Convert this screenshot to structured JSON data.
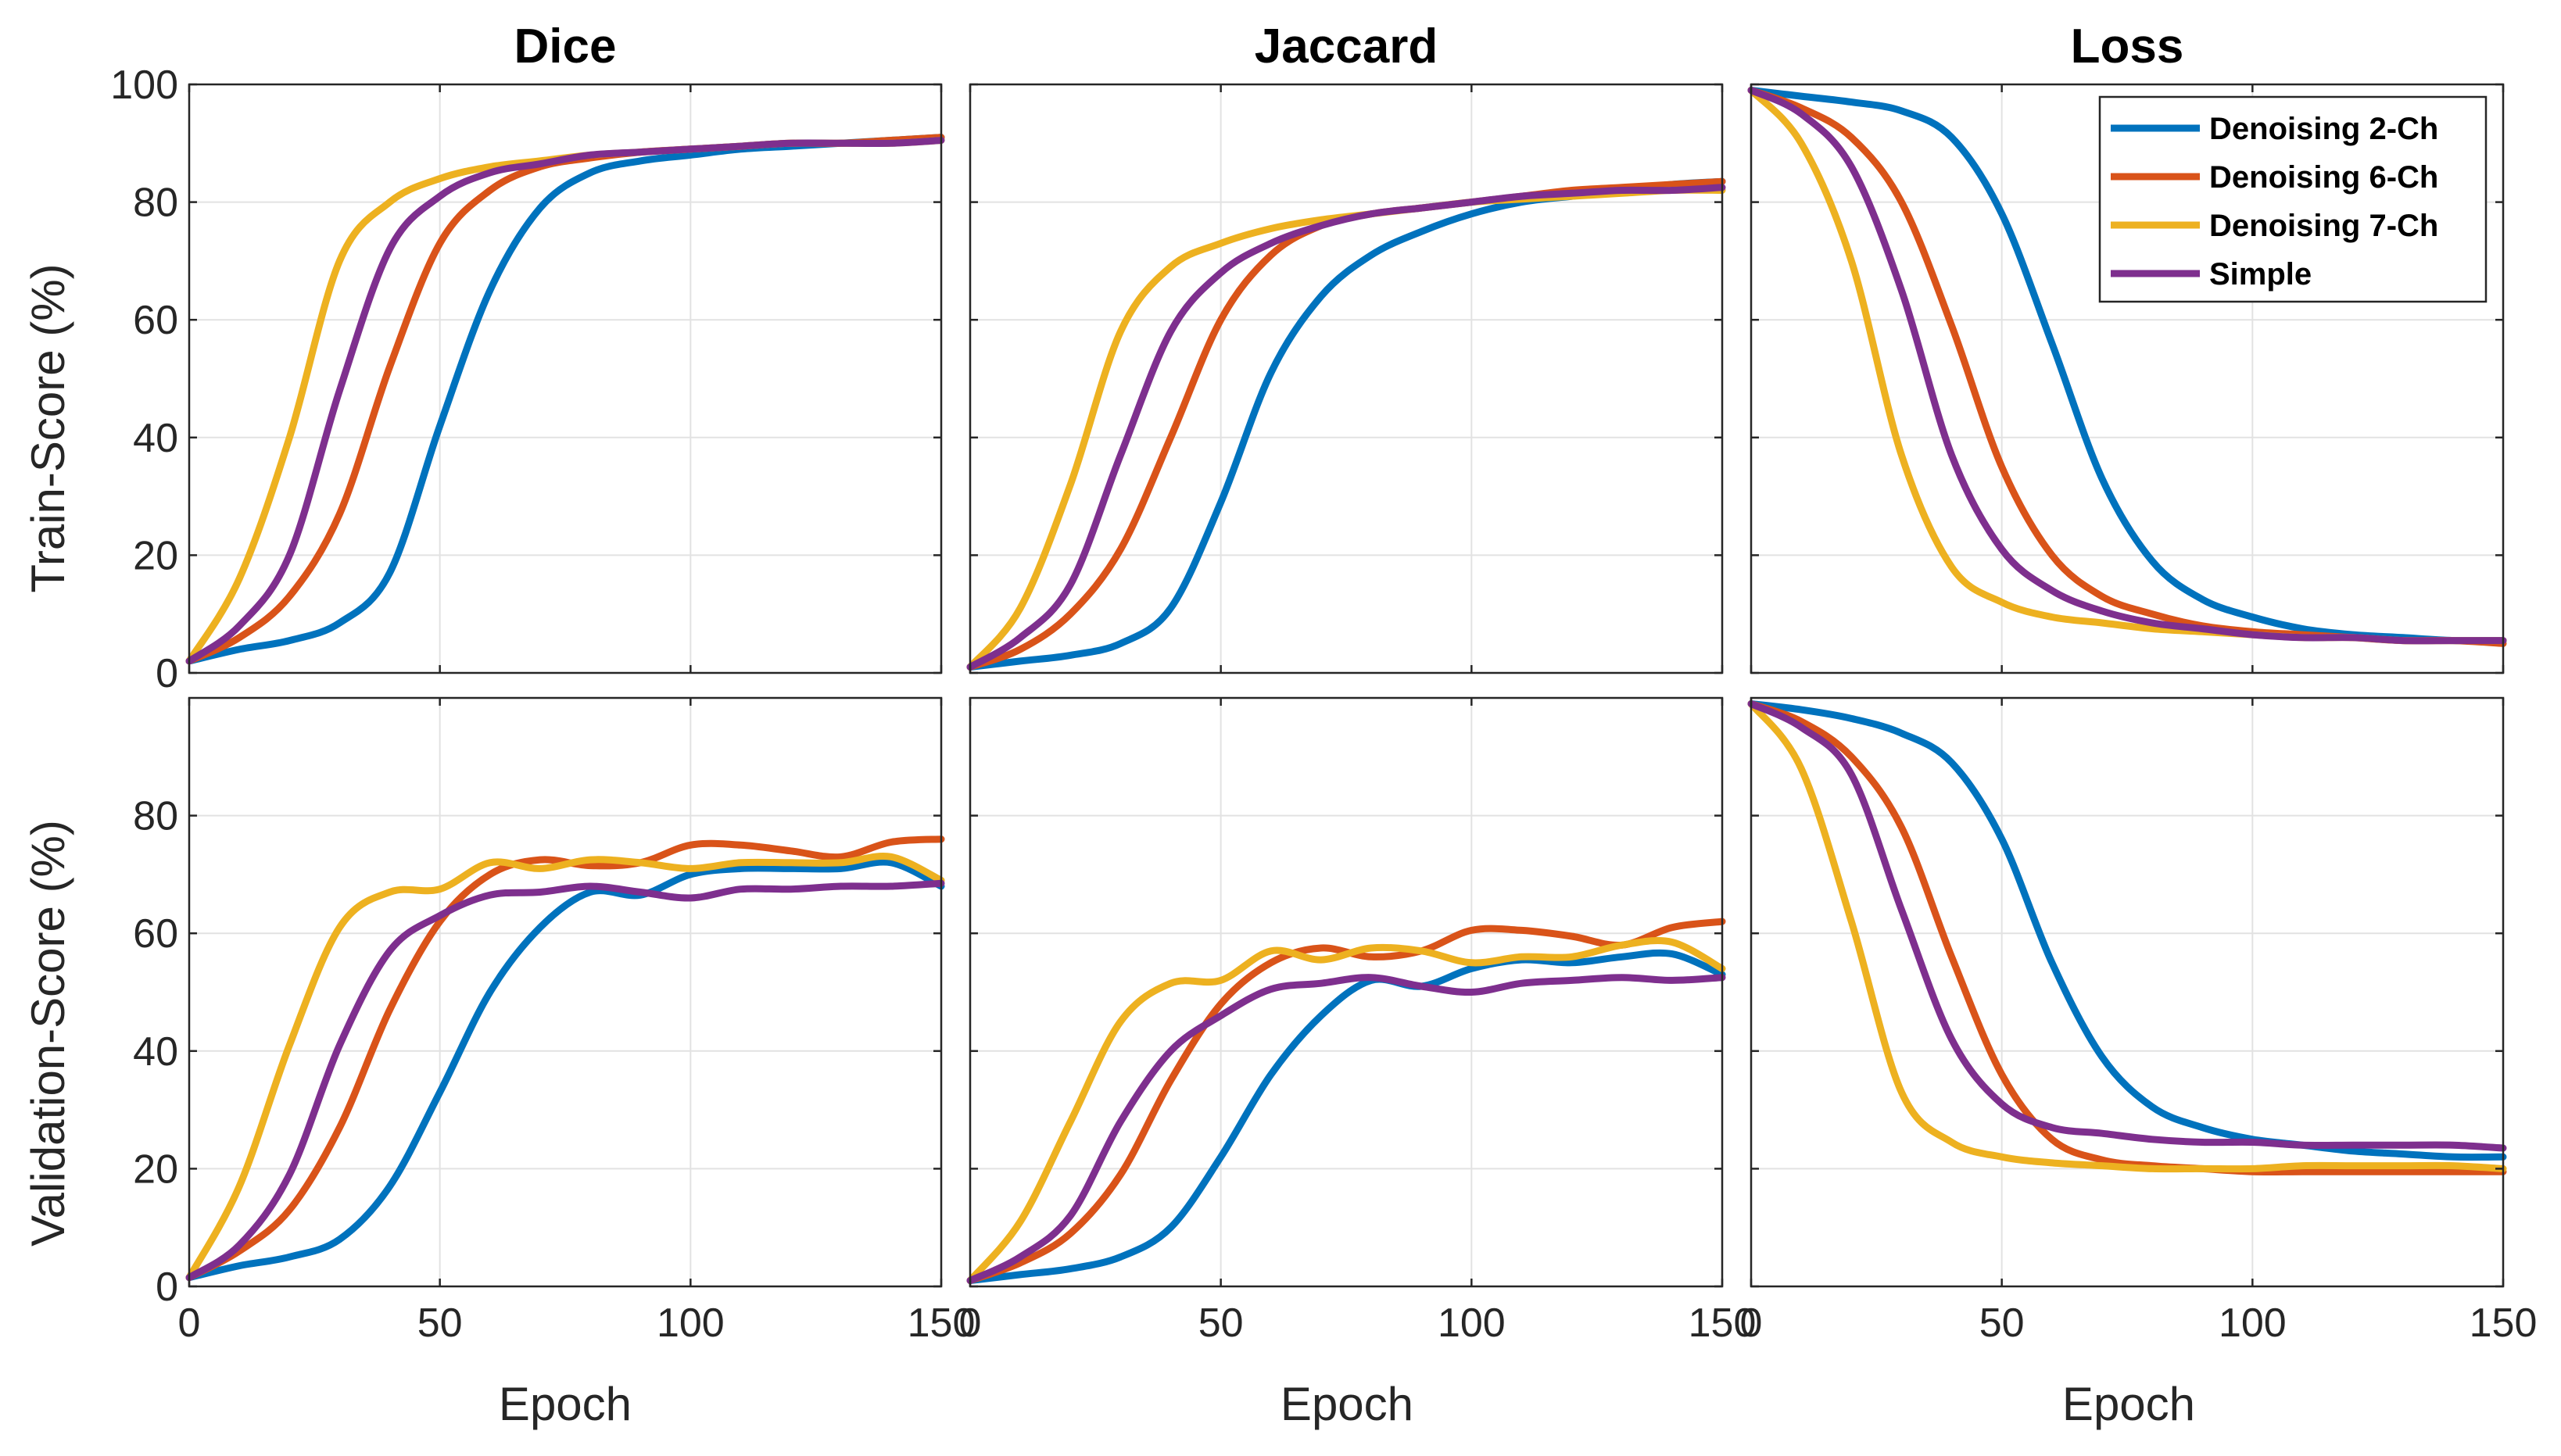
{
  "figure": {
    "xlabel": "Epoch",
    "row_ylabels": [
      "Train-Score (%)",
      "Validation-Score (%)"
    ],
    "column_titles": [
      "Dice",
      "Jaccard",
      "Loss"
    ]
  },
  "legend": {
    "entries": [
      {
        "name": "Denoising 2-Ch",
        "color": "#0072BD"
      },
      {
        "name": "Denoising 6-Ch",
        "color": "#D95319"
      },
      {
        "name": "Denoising 7-Ch",
        "color": "#EDB120"
      },
      {
        "name": "Simple",
        "color": "#7E2F8E"
      }
    ],
    "placement": "top-right of Loss (train) panel"
  },
  "chart_data": [
    {
      "type": "line",
      "panel": "train-dice",
      "title": "Dice",
      "xlabel": "",
      "ylabel": "Train-Score (%)",
      "xlim": [
        0,
        150
      ],
      "ylim": [
        0,
        100
      ],
      "xticks": [
        0,
        50,
        100,
        150
      ],
      "yticks": [
        0,
        20,
        40,
        60,
        80,
        100
      ],
      "xtick_labels": [],
      "ytick_labels": [
        "0",
        "20",
        "40",
        "60",
        "80",
        "100"
      ],
      "grid": true,
      "x": [
        0,
        10,
        20,
        30,
        40,
        50,
        60,
        70,
        80,
        90,
        100,
        110,
        120,
        130,
        140,
        150
      ],
      "series": [
        {
          "name": "Denoising 2-Ch",
          "values": [
            2,
            4,
            5.5,
            8.5,
            17,
            42,
            65,
            79,
            85,
            87,
            88,
            89,
            89.5,
            90,
            90.5,
            91
          ]
        },
        {
          "name": "Denoising 6-Ch",
          "values": [
            2,
            6,
            13,
            27,
            52,
            73,
            82,
            86,
            87.5,
            88.5,
            89,
            89.5,
            90,
            90,
            90.5,
            91
          ]
        },
        {
          "name": "Denoising 7-Ch",
          "values": [
            2,
            16,
            40,
            70,
            80,
            84,
            86,
            87,
            88,
            88.5,
            89,
            89.5,
            90,
            90,
            90,
            90.5
          ]
        },
        {
          "name": "Simple",
          "values": [
            2,
            8,
            20,
            48,
            72,
            81,
            85,
            86.5,
            88,
            88.5,
            89,
            89.5,
            90,
            90,
            90,
            90.5
          ]
        }
      ]
    },
    {
      "type": "line",
      "panel": "train-jaccard",
      "title": "Jaccard",
      "xlabel": "",
      "ylabel": "",
      "xlim": [
        0,
        150
      ],
      "ylim": [
        0,
        100
      ],
      "xticks": [
        0,
        50,
        100,
        150
      ],
      "yticks": [
        0,
        20,
        40,
        60,
        80,
        100
      ],
      "xtick_labels": [],
      "ytick_labels": [],
      "grid": true,
      "x": [
        0,
        10,
        20,
        30,
        40,
        50,
        60,
        70,
        80,
        90,
        100,
        110,
        120,
        130,
        140,
        150
      ],
      "series": [
        {
          "name": "Denoising 2-Ch",
          "values": [
            1,
            2,
            3,
            5,
            11,
            29,
            51,
            64,
            71,
            75,
            78,
            80,
            81,
            82,
            83,
            83.5
          ]
        },
        {
          "name": "Denoising 6-Ch",
          "values": [
            1,
            4,
            10,
            21,
            40,
            60,
            71,
            76,
            78,
            79,
            80,
            81,
            82,
            82.5,
            83,
            83.5
          ]
        },
        {
          "name": "Denoising 7-Ch",
          "values": [
            1,
            11,
            32,
            58,
            69,
            73,
            75.5,
            77,
            78,
            79,
            80,
            80.5,
            81,
            81.5,
            82,
            82
          ]
        },
        {
          "name": "Simple",
          "values": [
            1,
            6,
            15,
            37,
            58,
            68,
            73,
            76,
            78,
            79,
            80,
            81,
            81.5,
            82,
            82,
            82.5
          ]
        }
      ]
    },
    {
      "type": "line",
      "panel": "train-loss",
      "title": "Loss",
      "xlabel": "",
      "ylabel": "",
      "xlim": [
        0,
        150
      ],
      "ylim": [
        0,
        100
      ],
      "xticks": [
        0,
        50,
        100,
        150
      ],
      "yticks": [
        0,
        20,
        40,
        60,
        80,
        100
      ],
      "xtick_labels": [],
      "ytick_labels": [],
      "grid": true,
      "x": [
        0,
        10,
        20,
        30,
        40,
        50,
        60,
        70,
        80,
        90,
        100,
        110,
        120,
        130,
        140,
        150
      ],
      "series": [
        {
          "name": "Denoising 2-Ch",
          "values": [
            99,
            98,
            97,
            95.5,
            91,
            78,
            56,
            33,
            19,
            12.5,
            9.5,
            7.5,
            6.5,
            6,
            5.5,
            5.5
          ]
        },
        {
          "name": "Denoising 6-Ch",
          "values": [
            99,
            96,
            91,
            80,
            59,
            35,
            20,
            13,
            10,
            8,
            7,
            6.5,
            6,
            5.5,
            5.5,
            5
          ]
        },
        {
          "name": "Denoising 7-Ch",
          "values": [
            99,
            90,
            70,
            37,
            18,
            12,
            9.5,
            8.5,
            7.5,
            7,
            6.5,
            6,
            6,
            5.5,
            5.5,
            5.5
          ]
        },
        {
          "name": "Simple",
          "values": [
            99,
            95,
            86,
            65,
            37,
            21,
            14,
            10.5,
            8.5,
            7.5,
            6.5,
            6,
            6,
            5.5,
            5.5,
            5.5
          ]
        }
      ]
    },
    {
      "type": "line",
      "panel": "validation-dice",
      "title": "",
      "xlabel": "Epoch",
      "ylabel": "Validation-Score (%)",
      "xlim": [
        0,
        150
      ],
      "ylim": [
        0,
        100
      ],
      "xticks": [
        0,
        50,
        100,
        150
      ],
      "yticks": [
        0,
        20,
        40,
        60,
        80
      ],
      "xtick_labels": [
        "0",
        "50",
        "100",
        "150"
      ],
      "ytick_labels": [
        "0",
        "20",
        "40",
        "60",
        "80"
      ],
      "grid": true,
      "x": [
        0,
        10,
        20,
        30,
        40,
        50,
        60,
        70,
        80,
        90,
        100,
        110,
        120,
        130,
        140,
        150
      ],
      "series": [
        {
          "name": "Denoising 2-Ch",
          "values": [
            1.5,
            3.5,
            5,
            8,
            17,
            33,
            50,
            61,
            67,
            66.5,
            70,
            71,
            71,
            71,
            72,
            68
          ]
        },
        {
          "name": "Denoising 6-Ch",
          "values": [
            1.5,
            6,
            13,
            27,
            47,
            62,
            70,
            72.5,
            71.5,
            72,
            75,
            75,
            74,
            73,
            75.5,
            76
          ]
        },
        {
          "name": "Denoising 7-Ch",
          "values": [
            1.5,
            17,
            41,
            61,
            67,
            67.5,
            72,
            71,
            72.5,
            72,
            71,
            72,
            72,
            72,
            73,
            69
          ]
        },
        {
          "name": "Simple",
          "values": [
            1.5,
            7,
            19,
            41,
            57,
            63,
            66.5,
            67,
            68,
            67,
            66,
            67.5,
            67.5,
            68,
            68,
            68.5
          ]
        }
      ]
    },
    {
      "type": "line",
      "panel": "validation-jaccard",
      "title": "",
      "xlabel": "Epoch",
      "ylabel": "",
      "xlim": [
        0,
        150
      ],
      "ylim": [
        0,
        100
      ],
      "xticks": [
        0,
        50,
        100,
        150
      ],
      "yticks": [
        0,
        20,
        40,
        60,
        80
      ],
      "xtick_labels": [
        "0",
        "50",
        "100",
        "150"
      ],
      "ytick_labels": [],
      "grid": true,
      "x": [
        0,
        10,
        20,
        30,
        40,
        50,
        60,
        70,
        80,
        90,
        100,
        110,
        120,
        130,
        140,
        150
      ],
      "series": [
        {
          "name": "Denoising 2-Ch",
          "values": [
            1,
            2,
            3,
            5,
            10,
            22,
            36,
            46,
            52,
            51,
            54,
            55.5,
            55,
            56,
            56.5,
            53
          ]
        },
        {
          "name": "Denoising 6-Ch",
          "values": [
            1,
            4,
            9,
            19,
            35,
            48,
            55,
            57.5,
            56,
            57,
            60.5,
            60.5,
            59.5,
            58,
            61,
            62
          ]
        },
        {
          "name": "Denoising 7-Ch",
          "values": [
            1,
            11,
            28,
            45,
            51.5,
            52,
            57,
            55.5,
            57.5,
            57,
            55,
            56,
            56,
            58,
            58.5,
            54
          ]
        },
        {
          "name": "Simple",
          "values": [
            1,
            5,
            12,
            28,
            40,
            46,
            50.5,
            51.5,
            52.5,
            51,
            50,
            51.5,
            52,
            52.5,
            52,
            52.5
          ]
        }
      ]
    },
    {
      "type": "line",
      "panel": "validation-loss",
      "title": "",
      "xlabel": "Epoch",
      "ylabel": "",
      "xlim": [
        0,
        150
      ],
      "ylim": [
        0,
        100
      ],
      "xticks": [
        0,
        50,
        100,
        150
      ],
      "yticks": [
        0,
        20,
        40,
        60,
        80
      ],
      "xtick_labels": [
        "0",
        "50",
        "100",
        "150"
      ],
      "ytick_labels": [],
      "grid": true,
      "x": [
        0,
        10,
        20,
        30,
        40,
        50,
        60,
        70,
        80,
        90,
        100,
        110,
        120,
        130,
        140,
        150
      ],
      "series": [
        {
          "name": "Denoising 2-Ch",
          "values": [
            99,
            98,
            96.5,
            94,
            89,
            76,
            55,
            39,
            30.5,
            27,
            25,
            24,
            23,
            22.5,
            22,
            22
          ]
        },
        {
          "name": "Denoising 6-Ch",
          "values": [
            99,
            96,
            90,
            78,
            56,
            36,
            25,
            21.5,
            20.5,
            20,
            19.5,
            19.5,
            19.5,
            19.5,
            19.5,
            19.5
          ]
        },
        {
          "name": "Denoising 7-Ch",
          "values": [
            99,
            88,
            62,
            33,
            24.5,
            22,
            21,
            20.5,
            20,
            20,
            20,
            20.5,
            20.5,
            20.5,
            20.5,
            20
          ]
        },
        {
          "name": "Simple",
          "values": [
            99,
            95,
            87,
            64,
            42,
            31,
            27,
            26,
            25,
            24.5,
            24.5,
            24,
            24,
            24,
            24,
            23.5
          ]
        }
      ]
    }
  ]
}
